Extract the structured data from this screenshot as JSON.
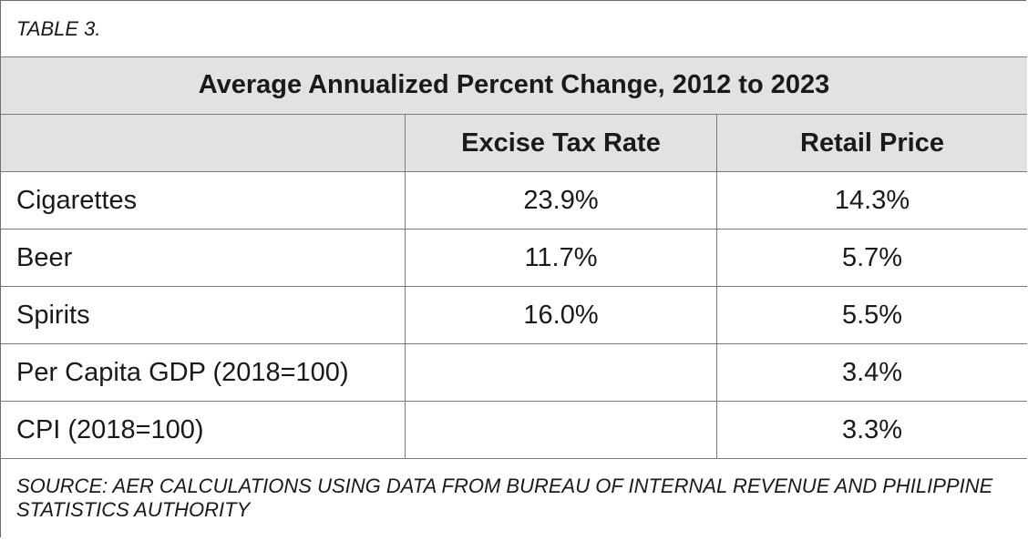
{
  "table_label": "TABLE 3.",
  "title": "Average Annualized Percent Change, 2012 to 2023",
  "columns": [
    "",
    "Excise Tax Rate",
    "Retail Price"
  ],
  "rows": [
    {
      "item": "Cigarettes",
      "excise_tax_rate": "23.9%",
      "retail_price": "14.3%"
    },
    {
      "item": "Beer",
      "excise_tax_rate": "11.7%",
      "retail_price": "5.7%"
    },
    {
      "item": "Spirits",
      "excise_tax_rate": "16.0%",
      "retail_price": "5.5%"
    },
    {
      "item": "Per Capita GDP (2018=100)",
      "excise_tax_rate": "",
      "retail_price": "3.4%"
    },
    {
      "item": "CPI (2018=100)",
      "excise_tax_rate": "",
      "retail_price": "3.3%"
    }
  ],
  "source": "SOURCE: AER CALCULATIONS USING DATA FROM BUREAU OF INTERNAL REVENUE AND PHILIPPINE STATISTICS AUTHORITY"
}
